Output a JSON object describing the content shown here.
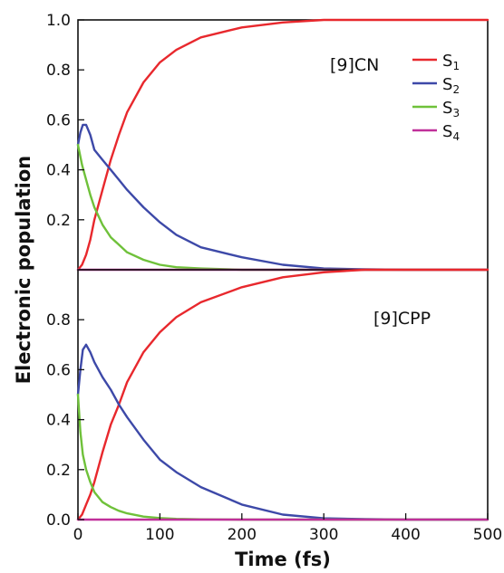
{
  "chart_data": {
    "type": "line",
    "shared_xlabel": "Time (fs)",
    "shared_ylabel": "Electronic population",
    "xlim": [
      0,
      500
    ],
    "x_ticks": [
      "0",
      "100",
      "200",
      "300",
      "400",
      "500"
    ],
    "legend": {
      "placement": "top-right",
      "entries": [
        {
          "label": "S",
          "sub": "1",
          "color": "#e8282d"
        },
        {
          "label": "S",
          "sub": "2",
          "color": "#3d49a8"
        },
        {
          "label": "S",
          "sub": "3",
          "color": "#6fc13a"
        },
        {
          "label": "S",
          "sub": "4",
          "color": "#c0309a"
        }
      ]
    },
    "panels": [
      {
        "label": "[9]CN",
        "ylim": [
          0,
          1.0
        ],
        "y_ticks": [
          "0.2",
          "0.4",
          "0.6",
          "0.8",
          "1.0"
        ],
        "series": [
          {
            "name": "S1",
            "color": "#e8282d",
            "x": [
              0,
              5,
              10,
              15,
              20,
              30,
              40,
              50,
              60,
              80,
              100,
              120,
              150,
              200,
              250,
              300,
              350,
              400,
              450,
              500
            ],
            "y": [
              0,
              0.02,
              0.06,
              0.12,
              0.2,
              0.32,
              0.44,
              0.54,
              0.63,
              0.75,
              0.83,
              0.88,
              0.93,
              0.97,
              0.99,
              1.0,
              1.0,
              1.0,
              1.0,
              1.0
            ]
          },
          {
            "name": "S2",
            "color": "#3d49a8",
            "x": [
              0,
              3,
              6,
              10,
              15,
              20,
              30,
              40,
              50,
              60,
              80,
              100,
              120,
              150,
              200,
              250,
              300,
              350,
              400,
              500
            ],
            "y": [
              0.5,
              0.55,
              0.58,
              0.58,
              0.54,
              0.48,
              0.44,
              0.4,
              0.36,
              0.32,
              0.25,
              0.19,
              0.14,
              0.09,
              0.05,
              0.02,
              0.005,
              0.002,
              0,
              0
            ]
          },
          {
            "name": "S3",
            "color": "#6fc13a",
            "x": [
              0,
              5,
              10,
              15,
              20,
              30,
              40,
              50,
              60,
              80,
              100,
              120,
              150,
              200,
              250,
              300,
              500
            ],
            "y": [
              0.5,
              0.42,
              0.36,
              0.3,
              0.25,
              0.18,
              0.13,
              0.1,
              0.07,
              0.04,
              0.02,
              0.01,
              0.005,
              0,
              0,
              0,
              0
            ]
          },
          {
            "name": "S4",
            "color": "#c0309a",
            "x": [
              0,
              100,
              200,
              300,
              400,
              500
            ],
            "y": [
              0,
              0,
              0,
              0,
              0,
              0
            ]
          }
        ]
      },
      {
        "label": "[9]CPP",
        "ylim": [
          0,
          1.0
        ],
        "y_ticks": [
          "0.0",
          "0.2",
          "0.4",
          "0.6",
          "0.8"
        ],
        "series": [
          {
            "name": "S1",
            "color": "#e8282d",
            "x": [
              0,
              5,
              10,
              15,
              20,
              30,
              40,
              50,
              60,
              80,
              100,
              120,
              150,
              200,
              250,
              300,
              350,
              400,
              500
            ],
            "y": [
              0,
              0.02,
              0.06,
              0.1,
              0.15,
              0.27,
              0.38,
              0.46,
              0.55,
              0.67,
              0.75,
              0.81,
              0.87,
              0.93,
              0.97,
              0.99,
              1.0,
              1.0,
              1.0
            ]
          },
          {
            "name": "S2",
            "color": "#3d49a8",
            "x": [
              0,
              3,
              6,
              10,
              15,
              20,
              30,
              40,
              50,
              60,
              80,
              100,
              120,
              150,
              200,
              250,
              300,
              350,
              400,
              500
            ],
            "y": [
              0.5,
              0.6,
              0.68,
              0.7,
              0.67,
              0.63,
              0.57,
              0.52,
              0.46,
              0.41,
              0.32,
              0.24,
              0.19,
              0.13,
              0.06,
              0.02,
              0.005,
              0.002,
              0,
              0
            ]
          },
          {
            "name": "S3",
            "color": "#6fc13a",
            "x": [
              0,
              3,
              6,
              10,
              15,
              20,
              30,
              40,
              50,
              60,
              80,
              100,
              120,
              150,
              200,
              500
            ],
            "y": [
              0.5,
              0.35,
              0.26,
              0.2,
              0.15,
              0.11,
              0.07,
              0.05,
              0.035,
              0.025,
              0.012,
              0.006,
              0.003,
              0.001,
              0,
              0
            ]
          },
          {
            "name": "S4",
            "color": "#c0309a",
            "x": [
              0,
              100,
              200,
              300,
              400,
              500
            ],
            "y": [
              0,
              0,
              0,
              0,
              0,
              0
            ]
          }
        ]
      }
    ]
  }
}
